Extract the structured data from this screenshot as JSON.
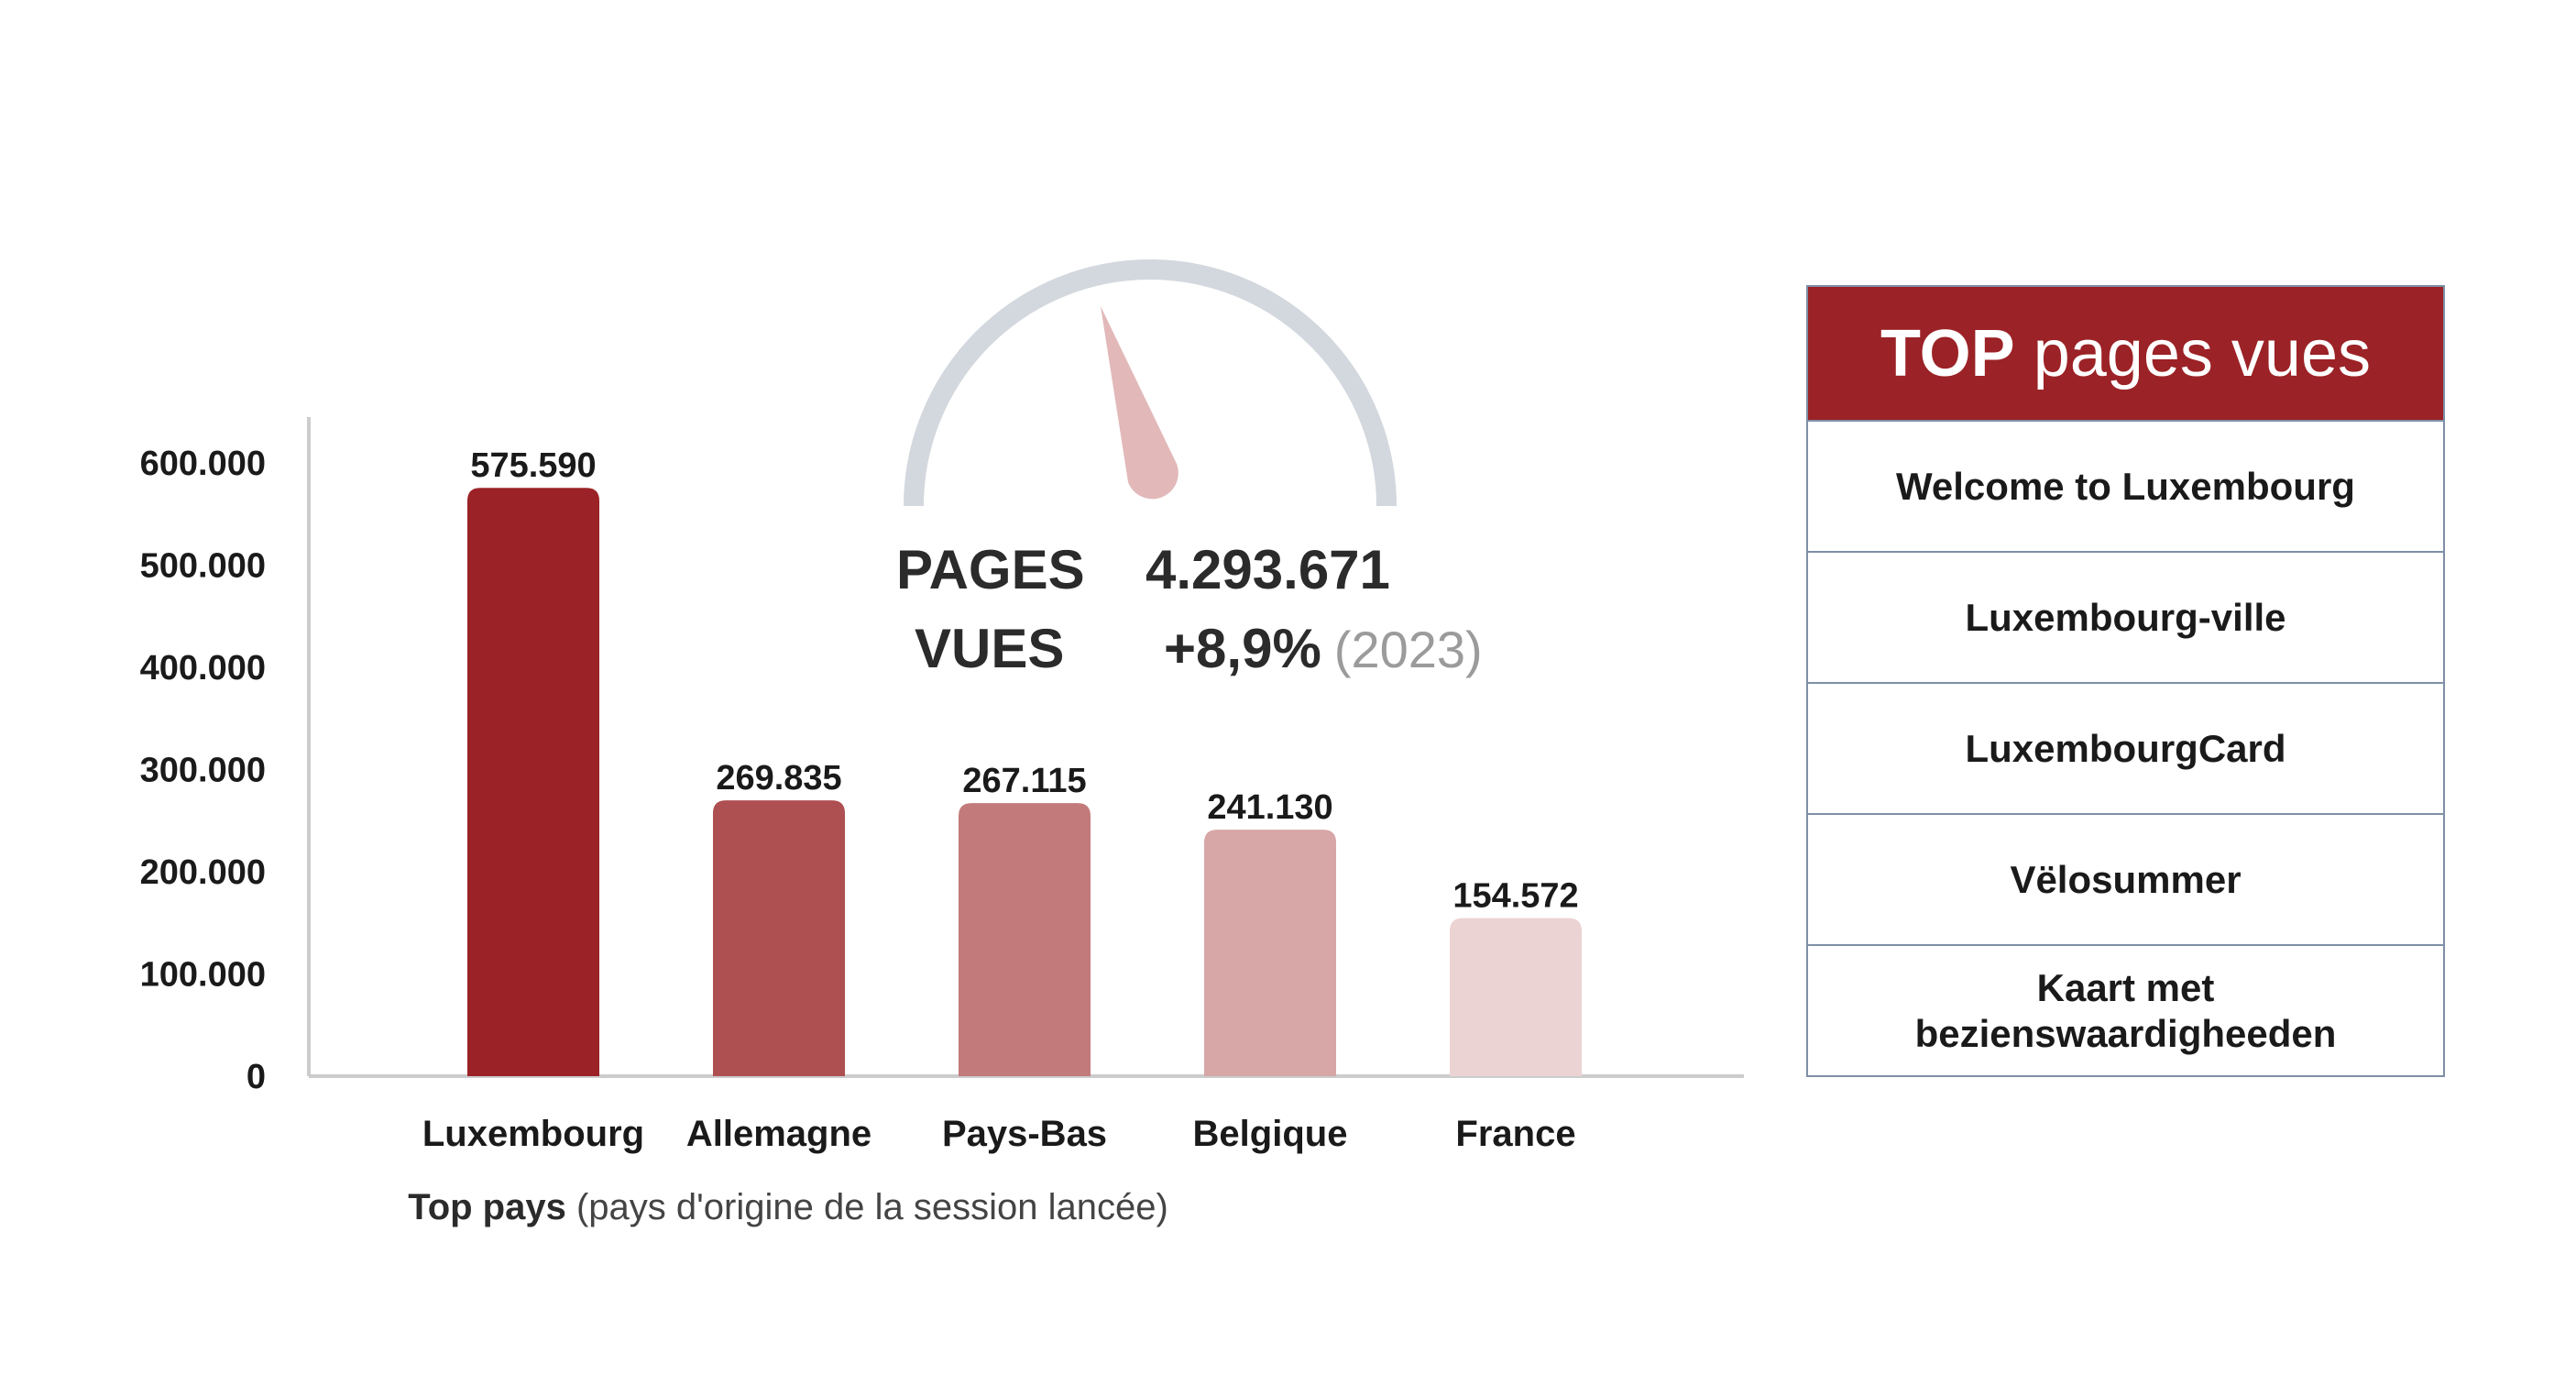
{
  "chart_data": {
    "type": "bar",
    "categories": [
      "Luxembourg",
      "Allemagne",
      "Pays-Bas",
      "Belgique",
      "France"
    ],
    "values": [
      575590,
      269835,
      267115,
      241130,
      154572
    ],
    "value_labels": [
      "575.590",
      "269.835",
      "267.115",
      "241.130",
      "154.572"
    ],
    "ylim": [
      0,
      600000
    ],
    "yticks": [
      0,
      100000,
      200000,
      300000,
      400000,
      500000,
      600000
    ],
    "ytick_labels": [
      "0",
      "100.000",
      "200.000",
      "300.000",
      "400.000",
      "500.000",
      "600.000"
    ],
    "bar_colors": [
      "#9b2226",
      "#ae4f51",
      "#c27a7b",
      "#d7a6a7",
      "#ebd3d4"
    ],
    "grid": false,
    "xlabel_bold": "Top pays",
    "xlabel_note": "(pays d'origine de la session lancée)"
  },
  "gauge": {
    "arc_color": "#d3d8de",
    "needle_color": "#e2b8b9"
  },
  "kpi": {
    "label_line1": "PAGES",
    "label_line2": "VUES",
    "value": "4.293.671",
    "change": "+8,9%",
    "year": "(2023)"
  },
  "top_pages": {
    "title_strong": "TOP",
    "title_light": "pages vues",
    "header_color": "#9b2226",
    "items": [
      "Welcome to Luxembourg",
      "Luxembourg-ville",
      "LuxembourgCard",
      "Vëlosummer",
      "Kaart met bezienswaardigheeden"
    ]
  }
}
